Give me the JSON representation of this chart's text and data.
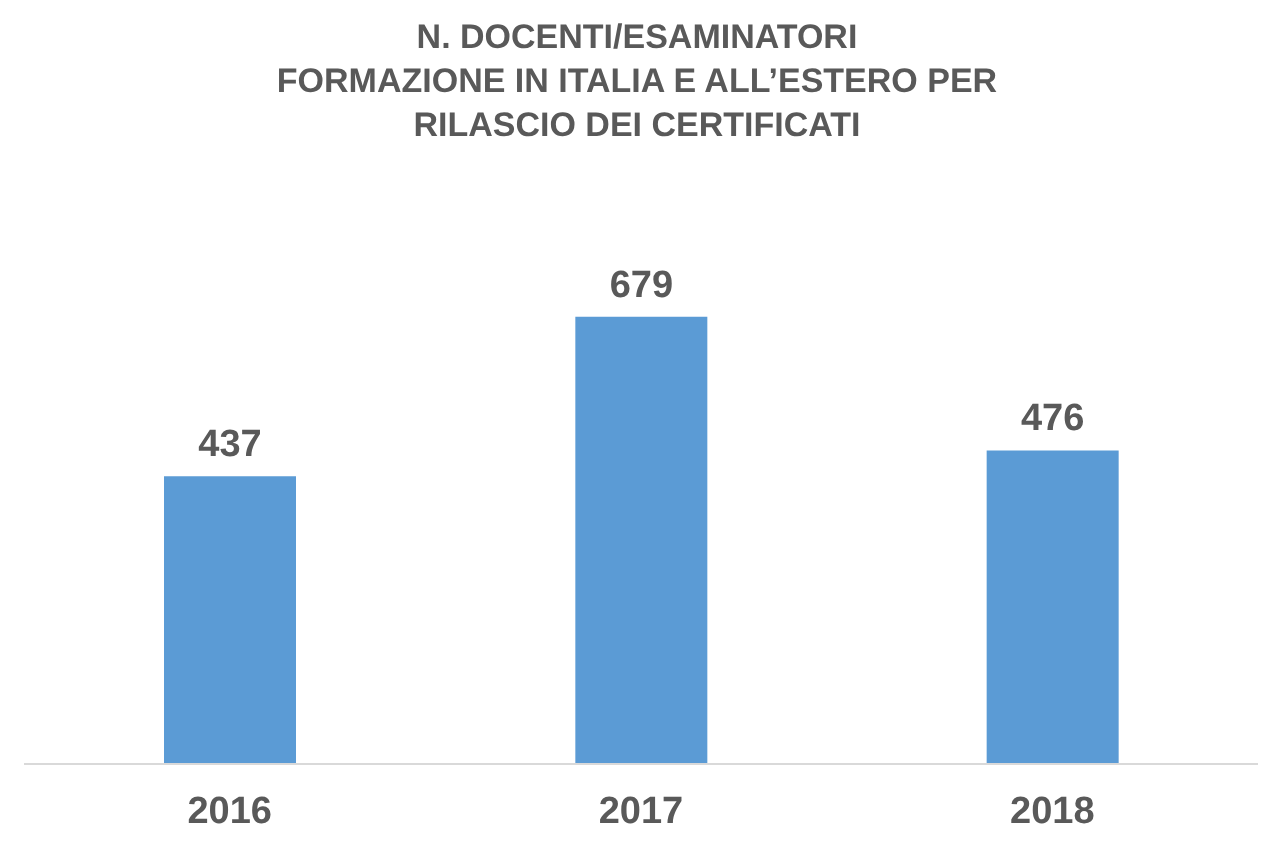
{
  "chart_data": {
    "type": "bar",
    "title": "N. DOCENTI/ESAMINATORI\nFORMAZIONE IN ITALIA E ALL’ESTERO PER\nRILASCIO DEI CERTIFICATI",
    "categories": [
      "2016",
      "2017",
      "2018"
    ],
    "values": [
      437,
      679,
      476
    ],
    "color": "#5b9bd5",
    "data_labels": true
  }
}
